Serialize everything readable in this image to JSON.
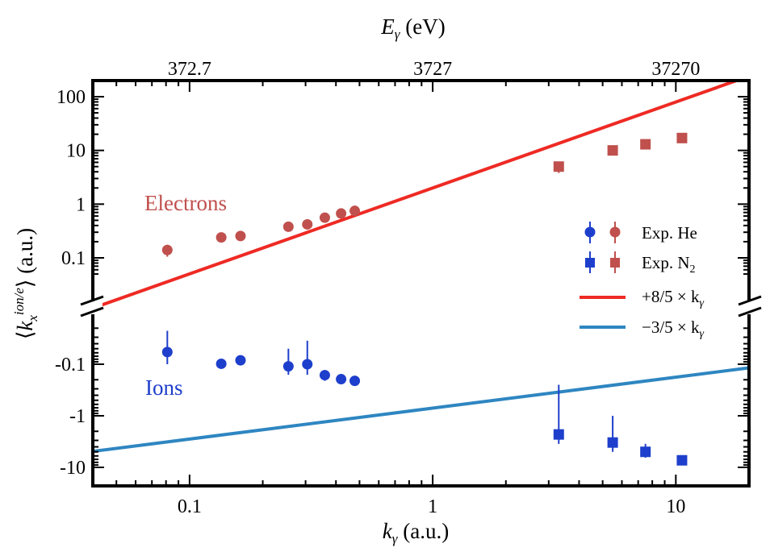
{
  "chart_data": {
    "type": "scatter",
    "x_scale": "log",
    "y_scale": "symlog-broken",
    "xlim": [
      0.04,
      20
    ],
    "xlabel": "k_γ (a.u.)",
    "ylabel": "⟨k_x^{ion/e}⟩ (a.u.)",
    "top_axis_label": "E_γ (eV)",
    "x_ticks": [
      {
        "v": 0.1,
        "label": "0.1"
      },
      {
        "v": 1,
        "label": "1"
      },
      {
        "v": 10,
        "label": "10"
      }
    ],
    "top_ticks": [
      {
        "v": 0.1,
        "label": "372.7"
      },
      {
        "v": 1,
        "label": "3727"
      },
      {
        "v": 10,
        "label": "37270"
      }
    ],
    "upper_panel": {
      "ylim": [
        0.05,
        150
      ],
      "y_ticks": [
        {
          "v": 0.1,
          "label": "0.1"
        },
        {
          "v": 1,
          "label": "1"
        },
        {
          "v": 10,
          "label": "10"
        },
        {
          "v": 100,
          "label": "100"
        }
      ]
    },
    "lower_panel": {
      "ylim_magnitude": [
        0.02,
        15
      ],
      "y_ticks": [
        {
          "v": 0.1,
          "label": "-0.1"
        },
        {
          "v": 1,
          "label": "-1"
        },
        {
          "v": 10,
          "label": "-10"
        }
      ]
    },
    "series": [
      {
        "key": "electrons_he",
        "panel": "upper",
        "marker": "circle",
        "color": "#c0504d",
        "x": [
          0.081,
          0.135,
          0.162,
          0.255,
          0.305,
          0.36,
          0.42,
          0.478
        ],
        "y": [
          0.14,
          0.24,
          0.255,
          0.38,
          0.42,
          0.56,
          0.67,
          0.75
        ],
        "yerr_low": [
          0.105,
          0.218,
          0.235,
          0.35,
          0.38,
          0.52,
          0.62,
          0.7
        ],
        "yerr_high": [
          0.175,
          0.262,
          0.28,
          0.41,
          0.46,
          0.6,
          0.72,
          0.8
        ]
      },
      {
        "key": "electrons_n2",
        "panel": "upper",
        "marker": "square",
        "color": "#c0504d",
        "x": [
          3.3,
          5.5,
          7.5,
          10.6
        ],
        "y": [
          5.0,
          10.0,
          13.0,
          17.0
        ],
        "yerr_low": [
          3.8,
          9.0,
          12.0,
          16.0
        ],
        "yerr_high": [
          6.2,
          11.0,
          14.0,
          18.0
        ]
      },
      {
        "key": "ions_he",
        "panel": "lower",
        "marker": "circle",
        "color": "#1e3fcc",
        "x": [
          0.081,
          0.135,
          0.162,
          0.255,
          0.305,
          0.36,
          0.42,
          0.478
        ],
        "y": [
          -0.058,
          -0.098,
          -0.084,
          -0.11,
          -0.1,
          -0.163,
          -0.195,
          -0.21
        ],
        "yerr_low": [
          -0.0225,
          -0.08,
          -0.07,
          -0.05,
          -0.035,
          -0.13,
          -0.18,
          -0.19
        ],
        "yerr_high": [
          -0.1,
          -0.12,
          -0.095,
          -0.16,
          -0.16,
          -0.21,
          -0.215,
          -0.23
        ]
      },
      {
        "key": "ions_n2",
        "panel": "lower",
        "marker": "square",
        "color": "#1e3fcc",
        "x": [
          3.3,
          5.5,
          7.5,
          10.6
        ],
        "y": [
          -2.3,
          -3.3,
          -5.0,
          -7.3
        ],
        "yerr_low": [
          -0.25,
          -1.0,
          -3.5,
          -6.5
        ],
        "yerr_high": [
          -3.5,
          -5.0,
          -6.5,
          -8.0
        ]
      },
      {
        "key": "fit_electrons",
        "panel": "upper",
        "type": "line",
        "color": "#ee2a24",
        "slope": 1.6,
        "x": [
          0.04,
          20
        ]
      },
      {
        "key": "fit_ions",
        "panel": "lower",
        "type": "line",
        "color": "#2e86c1",
        "slope": -0.6,
        "x": [
          0.04,
          20
        ]
      }
    ],
    "annotations": [
      {
        "text": "Electrons",
        "color": "#c0504d"
      },
      {
        "text": "Ions",
        "color": "#1e3fcc"
      }
    ],
    "legend": {
      "placement": "right",
      "entries": [
        {
          "text": "Exp. He",
          "marker": "circle"
        },
        {
          "text": "Exp. N",
          "subscript": "2",
          "marker": "square"
        },
        {
          "text": "+8/5 × k",
          "subscript": "γ",
          "line_color": "#ee2a24"
        },
        {
          "text": "−3/5 × k",
          "subscript": "γ",
          "line_color": "#2e86c1"
        }
      ]
    }
  }
}
